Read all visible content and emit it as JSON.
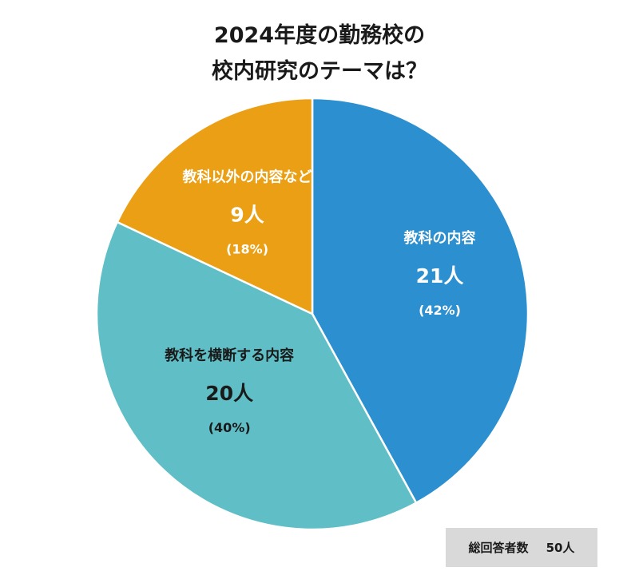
{
  "title_line1": "2024年度の勤務校の",
  "title_line2": "校内研究のテーマは？",
  "total": {
    "label": "総回答者数",
    "count": "50人"
  },
  "chart_data": {
    "type": "pie",
    "title": "2024年度の勤務校の校内研究のテーマは？",
    "slices": [
      {
        "label": "教科の内容",
        "value": 21,
        "value_text": "21人",
        "percent_text": "(42%)",
        "color": "#2b8fd0"
      },
      {
        "label": "教科を横断する内容",
        "value": 20,
        "value_text": "20人",
        "percent_text": "(40%)",
        "color": "#60bfc6"
      },
      {
        "label": "教科以外の内容など",
        "value": 9,
        "value_text": "9人",
        "percent_text": "(18%)",
        "color": "#eb9f14"
      }
    ],
    "start": "12 o'clock",
    "direction": "clockwise",
    "label_colors": [
      "#ffffff",
      "#1a1a1a",
      "#ffffff"
    ]
  }
}
